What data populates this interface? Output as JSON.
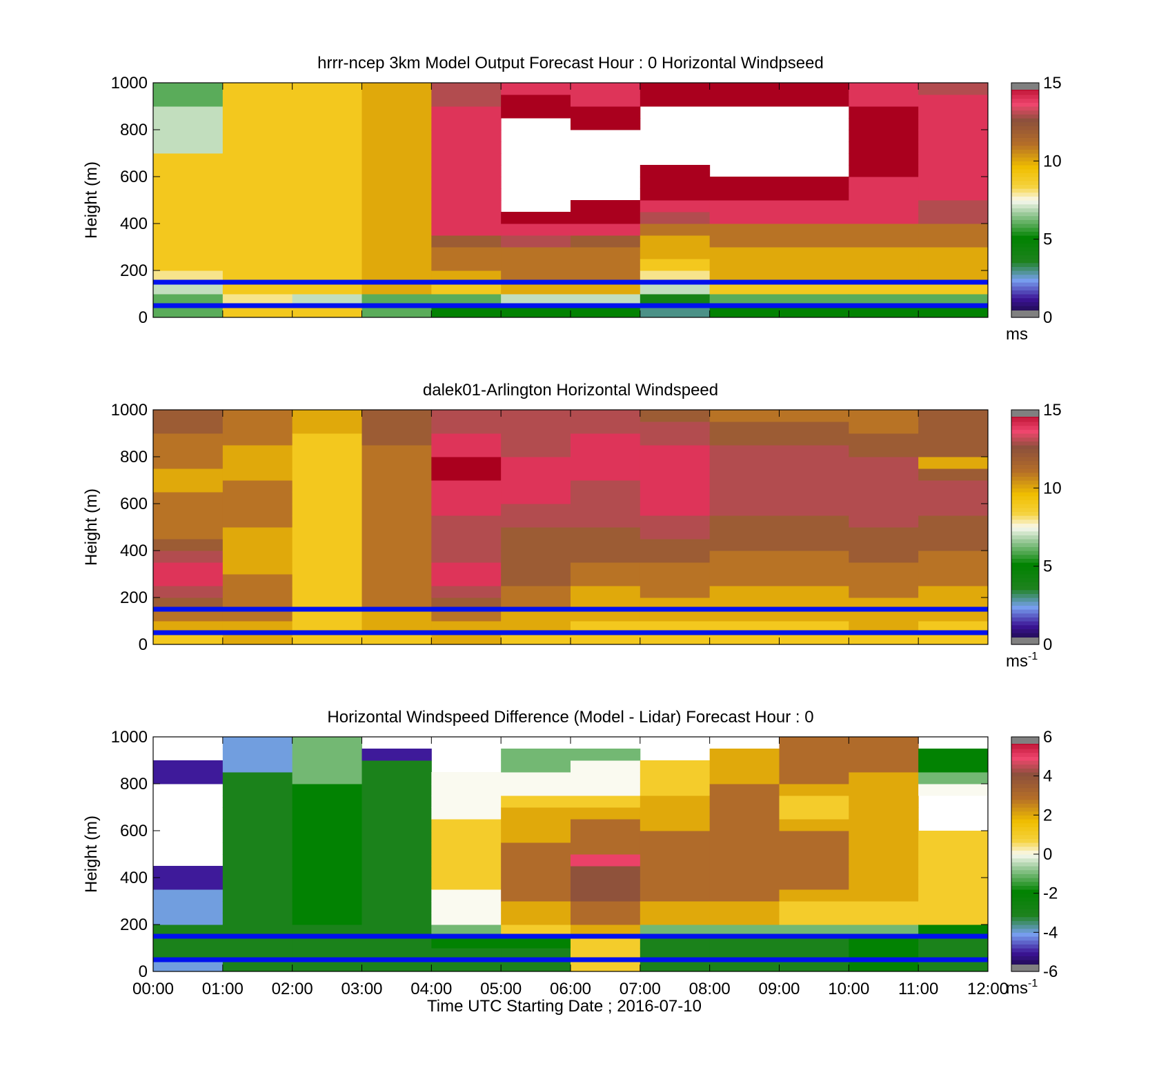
{
  "figure": {
    "xlabel": "Time UTC  Starting Date ; 2016-07-10"
  },
  "chart_data": [
    {
      "type": "heatmap",
      "title": "hrrr-ncep 3km Model Output   Forecast Hour : 0 Horizontal Windpseed",
      "ylabel": "Height (m)",
      "xlabel": "",
      "xlim": [
        0,
        12
      ],
      "ylim": [
        0,
        1000
      ],
      "yticks": [
        0,
        200,
        400,
        600,
        800,
        1000
      ],
      "xtick_labels": [
        "00:00",
        "01:00",
        "02:00",
        "03:00",
        "04:00",
        "05:00",
        "06:00",
        "07:00",
        "08:00",
        "09:00",
        "10:00",
        "11:00",
        "12:00"
      ],
      "show_xtick_labels": false,
      "colorbar": {
        "min": 0,
        "max": 15,
        "ticks": [
          0,
          5,
          10,
          15
        ],
        "unit": "ms",
        "unit_sup": ""
      },
      "reference_lines_m": [
        50,
        150
      ],
      "bin_m": 50,
      "columns": [
        [
          6,
          6,
          7,
          8,
          9,
          9,
          9,
          9,
          9,
          9,
          9,
          9,
          9,
          9,
          7,
          7,
          7,
          7,
          6,
          6
        ],
        [
          9,
          8,
          9,
          9,
          9,
          9,
          9,
          9,
          9,
          9,
          9,
          9,
          9,
          9,
          9,
          9,
          9,
          9,
          9,
          9
        ],
        [
          9,
          7,
          9,
          9,
          9,
          9,
          9,
          9,
          9,
          9,
          9,
          9,
          9,
          9,
          9,
          9,
          9,
          9,
          9,
          9
        ],
        [
          6,
          6,
          10,
          10,
          10,
          10,
          10,
          10,
          10,
          10,
          10,
          10,
          10,
          10,
          10,
          10,
          10,
          10,
          10,
          10
        ],
        [
          5,
          6,
          9,
          10,
          11,
          11,
          12,
          14,
          14,
          14,
          14,
          14,
          14,
          14,
          14,
          14,
          14,
          14,
          13,
          13
        ],
        [
          5,
          7,
          10,
          11,
          11,
          11,
          13,
          14,
          15,
          null,
          null,
          null,
          null,
          null,
          null,
          null,
          null,
          15,
          15,
          14
        ],
        [
          5,
          7,
          10,
          11,
          11,
          11,
          12,
          14,
          15,
          15,
          null,
          null,
          null,
          null,
          null,
          null,
          15,
          15,
          14,
          14
        ],
        [
          3,
          4,
          7,
          8,
          9,
          10,
          10,
          11,
          13,
          14,
          15,
          15,
          15,
          null,
          null,
          null,
          null,
          null,
          15,
          15
        ],
        [
          5,
          6,
          9,
          10,
          10,
          10,
          11,
          11,
          14,
          14,
          15,
          15,
          null,
          null,
          null,
          null,
          null,
          null,
          15,
          15
        ],
        [
          5,
          6,
          9,
          10,
          10,
          10,
          11,
          11,
          14,
          14,
          15,
          15,
          null,
          null,
          null,
          null,
          null,
          null,
          15,
          15
        ],
        [
          5,
          6,
          9,
          10,
          10,
          10,
          11,
          11,
          14,
          14,
          14,
          14,
          15,
          15,
          15,
          15,
          15,
          15,
          14,
          14
        ],
        [
          5,
          6,
          9,
          10,
          10,
          10,
          11,
          11,
          13,
          13,
          14,
          14,
          14,
          14,
          14,
          14,
          14,
          14,
          14,
          13
        ]
      ]
    },
    {
      "type": "heatmap",
      "title": "dalek01-Arlington  Horizontal Windspeed",
      "ylabel": "Height (m)",
      "xlabel": "",
      "xlim": [
        0,
        12
      ],
      "ylim": [
        0,
        1000
      ],
      "yticks": [
        0,
        200,
        400,
        600,
        800,
        1000
      ],
      "xtick_labels": [
        "00:00",
        "01:00",
        "02:00",
        "03:00",
        "04:00",
        "05:00",
        "06:00",
        "07:00",
        "08:00",
        "09:00",
        "10:00",
        "11:00",
        "12:00"
      ],
      "show_xtick_labels": false,
      "colorbar": {
        "min": 0,
        "max": 15,
        "ticks": [
          0,
          5,
          10,
          15
        ],
        "unit": "ms",
        "unit_sup": "-1"
      },
      "reference_lines_m": [
        50,
        150
      ],
      "bin_m": 50,
      "columns": [
        [
          9,
          10,
          11,
          12,
          13,
          14,
          14,
          13,
          12,
          11,
          11,
          11,
          11,
          10,
          10,
          11,
          11,
          11,
          12,
          12
        ],
        [
          10,
          10,
          11,
          11,
          11,
          11,
          10,
          10,
          10,
          10,
          11,
          11,
          11,
          11,
          10,
          10,
          10,
          11,
          11,
          11
        ],
        [
          9,
          9,
          9,
          9,
          9,
          9,
          9,
          9,
          9,
          9,
          9,
          9,
          9,
          9,
          9,
          9,
          9,
          9,
          10,
          10
        ],
        [
          9,
          10,
          10,
          11,
          11,
          11,
          11,
          11,
          11,
          11,
          11,
          11,
          11,
          11,
          11,
          11,
          11,
          12,
          12,
          12
        ],
        [
          10,
          10,
          11,
          12,
          13,
          14,
          14,
          13,
          13,
          13,
          13,
          14,
          14,
          14,
          15,
          15,
          14,
          14,
          13,
          13
        ],
        [
          9,
          10,
          10,
          11,
          11,
          12,
          12,
          12,
          12,
          12,
          13,
          13,
          14,
          14,
          14,
          14,
          13,
          13,
          13,
          13
        ],
        [
          9,
          9,
          10,
          10,
          10,
          11,
          11,
          12,
          12,
          12,
          13,
          13,
          13,
          13,
          14,
          14,
          14,
          14,
          13,
          13
        ],
        [
          9,
          9,
          10,
          10,
          11,
          11,
          11,
          12,
          12,
          13,
          13,
          14,
          14,
          14,
          14,
          14,
          14,
          13,
          13,
          12
        ],
        [
          9,
          9,
          10,
          10,
          10,
          11,
          11,
          11,
          12,
          12,
          12,
          13,
          13,
          13,
          13,
          13,
          13,
          12,
          12,
          11
        ],
        [
          9,
          9,
          10,
          10,
          10,
          11,
          11,
          11,
          12,
          12,
          12,
          13,
          13,
          13,
          13,
          13,
          13,
          12,
          12,
          11
        ],
        [
          9,
          10,
          10,
          10,
          11,
          11,
          11,
          12,
          12,
          12,
          13,
          13,
          13,
          13,
          13,
          13,
          12,
          12,
          11,
          11
        ],
        [
          9,
          9,
          10,
          10,
          10,
          11,
          11,
          11,
          12,
          12,
          12,
          13,
          13,
          13,
          12,
          10,
          12,
          12,
          12,
          12
        ]
      ]
    },
    {
      "type": "heatmap",
      "title": "Horizontal Windspeed Difference (Model - Lidar) Forecast Hour : 0",
      "ylabel": "Height (m)",
      "xlabel": "",
      "xlim": [
        0,
        12
      ],
      "ylim": [
        0,
        1000
      ],
      "yticks": [
        0,
        200,
        400,
        600,
        800,
        1000
      ],
      "xtick_labels": [
        "00:00",
        "01:00",
        "02:00",
        "03:00",
        "04:00",
        "05:00",
        "06:00",
        "07:00",
        "08:00",
        "09:00",
        "10:00",
        "11:00",
        "12:00"
      ],
      "show_xtick_labels": true,
      "colorbar": {
        "min": -6,
        "max": 6,
        "ticks": [
          -6,
          -4,
          -2,
          0,
          2,
          4,
          6
        ],
        "unit": "ms",
        "unit_sup": "-1"
      },
      "reference_lines_m": [
        50,
        150
      ],
      "bin_m": 50,
      "columns": [
        [
          -4,
          -3,
          -3,
          -3,
          -4,
          -4,
          -4,
          -5,
          -5,
          null,
          null,
          null,
          null,
          null,
          null,
          null,
          -5,
          -5,
          null,
          null
        ],
        [
          -3,
          -3,
          -3,
          -3,
          -3,
          -3,
          -3,
          -3,
          -3,
          -3,
          -3,
          -3,
          -3,
          -3,
          -3,
          -3,
          -3,
          -4,
          -4,
          -4
        ],
        [
          -3,
          -3,
          -3,
          -3,
          -2,
          -2,
          -2,
          -2,
          -2,
          -2,
          -2,
          -2,
          -2,
          -2,
          -2,
          -2,
          -1,
          -1,
          -1,
          -1
        ],
        [
          -3,
          -3,
          -3,
          -3,
          -3,
          -3,
          -3,
          -3,
          -3,
          -3,
          -3,
          -3,
          -3,
          -3,
          -3,
          -3,
          -3,
          -3,
          -5,
          null
        ],
        [
          -3,
          -3,
          -2,
          -1,
          0,
          0,
          0,
          1,
          1,
          1,
          1,
          1,
          1,
          0,
          0,
          0,
          0,
          null,
          null,
          null
        ],
        [
          -3,
          -3,
          -2,
          1,
          2,
          2,
          3,
          3,
          3,
          3,
          3,
          2,
          2,
          2,
          1,
          0,
          0,
          -1,
          -1,
          null
        ],
        [
          1,
          1,
          1,
          2,
          3,
          3,
          4,
          4,
          4,
          5,
          3,
          3,
          3,
          2,
          1,
          0,
          0,
          0,
          -1,
          null
        ],
        [
          -3,
          -3,
          -3,
          -1,
          2,
          2,
          3,
          3,
          3,
          3,
          3,
          3,
          2,
          2,
          2,
          1,
          1,
          1,
          null,
          null
        ],
        [
          -3,
          -3,
          -3,
          -1,
          2,
          2,
          3,
          3,
          3,
          3,
          3,
          3,
          3,
          3,
          3,
          3,
          2,
          2,
          2,
          null
        ],
        [
          -3,
          -3,
          -3,
          -1,
          1,
          1,
          2,
          3,
          3,
          3,
          3,
          3,
          2,
          1,
          1,
          2,
          3,
          3,
          3,
          3
        ],
        [
          -2,
          -2,
          -2,
          -1,
          1,
          1,
          2,
          2,
          2,
          2,
          2,
          2,
          2,
          2,
          2,
          2,
          2,
          3,
          3,
          3
        ],
        [
          -3,
          -3,
          -3,
          -2,
          1,
          1,
          1,
          1,
          1,
          1,
          1,
          1,
          null,
          null,
          null,
          0,
          -1,
          -2,
          -2,
          null
        ]
      ]
    }
  ]
}
